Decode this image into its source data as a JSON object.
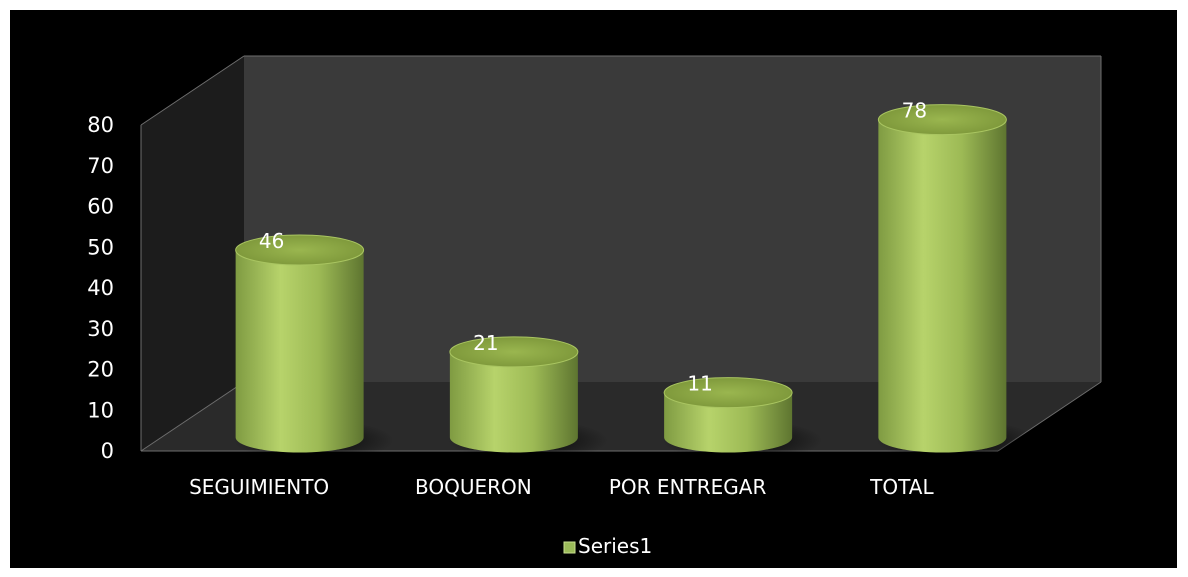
{
  "chart_data": {
    "type": "bar",
    "style": "3d-cylinder",
    "categories": [
      "SEGUIMIENTO",
      "BOQUERON",
      "POR ENTREGAR",
      "TOTAL"
    ],
    "series": [
      {
        "name": "Series1",
        "values": [
          46,
          21,
          11,
          78
        ],
        "color": "#9bbb59"
      }
    ],
    "data_labels": [
      "46",
      "21",
      "11",
      "78"
    ],
    "ylim": [
      0,
      80
    ],
    "yticks": [
      0,
      10,
      20,
      30,
      40,
      50,
      60,
      70,
      80
    ],
    "ytick_labels": [
      "0",
      "10",
      "20",
      "30",
      "40",
      "50",
      "60",
      "70",
      "80"
    ],
    "legend_position": "bottom",
    "background": "#000000",
    "wall_color": "#3a3a3a",
    "floor_color": "#2a2a2a"
  }
}
